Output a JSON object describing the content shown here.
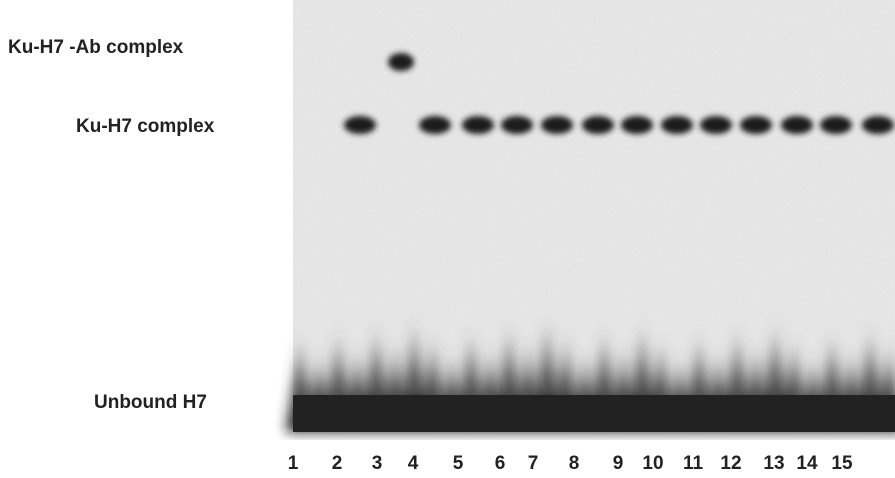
{
  "labels": {
    "ab_complex": "Ku-H7 -Ab complex",
    "complex": "Ku-H7 complex",
    "unbound": "Unbound H7"
  },
  "lanes": [
    "1",
    "2",
    "3",
    "4",
    "5",
    "6",
    "7",
    "8",
    "9",
    "10",
    "11",
    "12",
    "13",
    "14",
    "15"
  ]
}
